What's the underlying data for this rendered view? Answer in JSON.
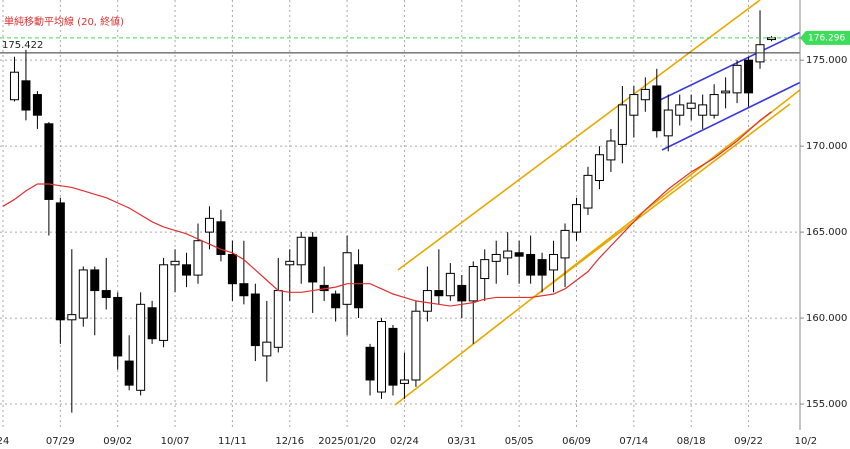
{
  "chart_data": {
    "type": "candlestick",
    "categories": [
      "24",
      null,
      null,
      null,
      null,
      "07/29",
      null,
      null,
      null,
      null,
      "09/02",
      null,
      null,
      null,
      null,
      "10/07",
      null,
      null,
      null,
      null,
      "11/11",
      null,
      null,
      null,
      null,
      "12/16",
      null,
      null,
      null,
      null,
      "2025/01/20",
      null,
      null,
      null,
      null,
      "02/24",
      null,
      null,
      null,
      null,
      "03/31",
      null,
      null,
      null,
      null,
      "05/05",
      null,
      null,
      null,
      null,
      "06/09",
      null,
      null,
      null,
      null,
      "07/14",
      null,
      null,
      null,
      null,
      "08/18",
      null,
      null,
      null,
      null,
      "09/22",
      null,
      null,
      null,
      null,
      "10/2"
    ],
    "open": [
      null,
      172.7,
      173.8,
      173.0,
      171.3,
      166.7,
      159.9,
      160.0,
      162.8,
      161.6,
      161.2,
      157.5,
      155.8,
      160.6,
      158.7,
      163.1,
      163.1,
      162.5,
      165.0,
      165.6,
      163.7,
      162.0,
      161.4,
      157.8,
      158.3,
      163.1,
      163.1,
      164.7,
      161.9,
      161.4,
      160.8,
      163.1,
      158.3,
      155.7,
      159.4,
      156.2,
      156.4,
      160.4,
      161.6,
      161.3,
      161.9,
      161.0,
      162.3,
      163.3,
      163.5,
      163.8,
      163.7,
      163.4,
      162.8,
      163.5,
      165.0,
      166.4,
      168.0,
      169.2,
      170.1,
      171.8,
      172.7,
      173.5,
      170.6,
      171.8,
      172.2,
      171.8,
      171.8,
      173.1,
      173.1,
      175.0,
      174.9,
      176.2,
      null,
      null,
      null
    ],
    "high": [
      null,
      175.2,
      175.6,
      173.2,
      171.4,
      167.0,
      164.0,
      163.0,
      163.0,
      163.5,
      161.5,
      159.0,
      161.5,
      161.0,
      163.5,
      164.0,
      163.8,
      165.5,
      166.5,
      166.3,
      164.5,
      164.5,
      162.0,
      161.0,
      163.5,
      164.0,
      165.0,
      165.0,
      163.0,
      161.6,
      164.8,
      164.0,
      158.5,
      160.0,
      159.6,
      158.0,
      161.0,
      163.0,
      164.0,
      163.2,
      162.5,
      163.3,
      164.0,
      164.5,
      165.0,
      164.5,
      164.8,
      163.8,
      164.5,
      165.5,
      167.0,
      168.8,
      170.0,
      171.0,
      173.5,
      173.5,
      174.0,
      174.5,
      173.0,
      173.0,
      173.0,
      173.0,
      173.6,
      174.0,
      175.0,
      175.2,
      177.9,
      176.4,
      null,
      null,
      null
    ],
    "low": [
      null,
      172.6,
      171.5,
      171.0,
      164.8,
      158.5,
      154.5,
      159.5,
      159.0,
      160.5,
      157.0,
      155.8,
      155.5,
      158.5,
      158.3,
      161.5,
      161.8,
      162.0,
      164.0,
      163.3,
      161.0,
      160.8,
      157.5,
      156.3,
      158.0,
      161.0,
      162.0,
      160.3,
      161.0,
      159.8,
      159.0,
      160.0,
      155.5,
      155.3,
      155.5,
      155.3,
      156.0,
      159.8,
      160.8,
      161.0,
      160.0,
      158.5,
      161.0,
      162.0,
      162.5,
      162.0,
      162.0,
      161.5,
      161.5,
      161.8,
      164.5,
      166.0,
      167.5,
      168.5,
      169.0,
      170.5,
      172.0,
      170.5,
      169.7,
      171.2,
      171.5,
      171.0,
      171.6,
      172.2,
      172.5,
      172.3,
      174.5,
      176.1,
      null,
      null,
      null
    ],
    "close": [
      null,
      174.3,
      172.1,
      171.8,
      166.9,
      159.9,
      160.2,
      162.8,
      161.6,
      161.2,
      157.8,
      156.1,
      160.8,
      158.8,
      163.1,
      163.3,
      162.5,
      164.5,
      165.8,
      163.7,
      162.0,
      161.3,
      158.4,
      158.6,
      161.6,
      163.3,
      164.7,
      162.1,
      161.6,
      160.6,
      163.8,
      160.6,
      156.4,
      159.8,
      156.1,
      156.4,
      160.4,
      161.6,
      161.3,
      162.6,
      161.0,
      163.0,
      163.4,
      163.7,
      163.9,
      163.6,
      162.5,
      162.5,
      163.7,
      165.1,
      166.6,
      168.3,
      169.5,
      170.3,
      172.4,
      173.0,
      173.3,
      170.9,
      172.1,
      172.4,
      172.5,
      172.4,
      173.0,
      173.2,
      174.7,
      173.1,
      175.9,
      176.3,
      null,
      null,
      null
    ],
    "up_color": "#ffffff",
    "down_color": "#000000",
    "series": [
      {
        "name": "単純移動平均線 (20, 終値)",
        "color": "#e03030",
        "values": [
          166.5,
          166.9,
          167.4,
          167.8,
          167.8,
          167.7,
          167.6,
          167.4,
          167.2,
          167.0,
          166.7,
          166.4,
          166.0,
          165.6,
          165.3,
          165.1,
          164.9,
          164.6,
          164.3,
          164.0,
          163.8,
          163.4,
          162.8,
          162.2,
          161.6,
          161.5,
          161.5,
          161.6,
          161.7,
          161.8,
          162.0,
          162.0,
          162.0,
          161.7,
          161.4,
          161.2,
          161.0,
          160.9,
          160.8,
          160.7,
          160.8,
          160.9,
          161.1,
          161.2,
          161.2,
          161.2,
          161.2,
          161.3,
          161.4,
          161.7,
          162.2,
          162.7,
          163.5,
          164.2,
          164.9,
          165.6,
          166.3,
          166.9,
          167.5,
          168.0,
          168.5,
          168.9,
          169.3,
          169.8,
          170.3,
          170.9,
          171.5,
          172.0,
          null,
          null,
          null
        ]
      }
    ],
    "ylim": [
      153.2,
      178.5
    ],
    "yticks": [
      {
        "value": 155,
        "label": "155.000"
      },
      {
        "value": 160,
        "label": "160.000"
      },
      {
        "value": 165,
        "label": "165.000"
      },
      {
        "value": 170,
        "label": "170.000"
      },
      {
        "value": 175,
        "label": "175.000"
      }
    ],
    "grid": true,
    "reference_line": {
      "value": 175.422,
      "color": "#333333"
    },
    "last_price": {
      "value": 176.296,
      "color": "#3ddc5a"
    }
  }
}
